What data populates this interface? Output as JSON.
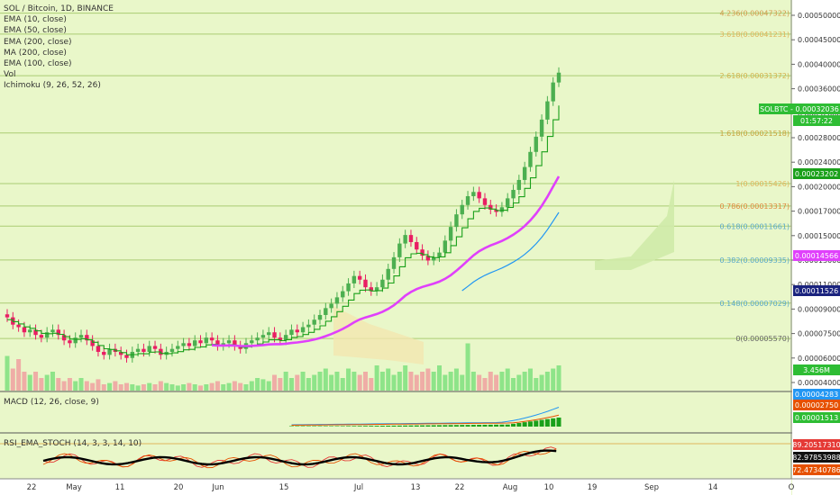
{
  "legend": {
    "symbol": "SOL / Bitcoin, 1D, BINANCE",
    "indicators": [
      "EMA (10, close)",
      "EMA (50, close)",
      "EMA (200, close)",
      "MA (200, close)",
      "EMA (100, close)",
      "Vol",
      "Ichimoku (9, 26, 52, 26)"
    ]
  },
  "macd_title": "MACD (12, 26, close, 9)",
  "rsi_title": "RSI_EMA_STOCH (14, 3, 3, 14, 10)",
  "colors": {
    "background": "#e9f7c9",
    "up": "#4caf50",
    "down": "#e91e63",
    "ema50": "#e040fb",
    "ema100": "#2196f3",
    "fib_line": "#a3c86a"
  },
  "chart_data": [
    {
      "type": "candlestick",
      "title": "SOL / Bitcoin, 1D, BINANCE",
      "x_ticks": [
        "22",
        "May",
        "11",
        "20",
        "Jun",
        "15",
        "Jul",
        "13",
        "22",
        "Aug",
        "10",
        "19",
        "Sep",
        "14",
        "O"
      ],
      "y_ticks": [
        "0.00050000",
        "0.00045000",
        "0.00040000",
        "0.00036000",
        "0.00032000",
        "0.00028000",
        "0.00024000",
        "0.00020000",
        "0.00017000",
        "0.00015000",
        "0.00013000",
        "0.00011000",
        "0.00009000",
        "0.00007500",
        "0.00006000",
        "0.00004000"
      ],
      "fib_levels": [
        {
          "label": "4.236(0.00047322)",
          "value": 0.00047322,
          "color": "#d49a4c"
        },
        {
          "label": "3.618(0.00041231)",
          "value": 0.00041231,
          "color": "#e0b45a"
        },
        {
          "label": "2.618(0.00031372)",
          "value": 0.00031372,
          "color": "#d4b24c"
        },
        {
          "label": "1.618(0.00021518)",
          "value": 0.00021518,
          "color": "#c9a33d"
        },
        {
          "label": "1(0.00015426)",
          "value": 0.00015426,
          "color": "#e0b45a"
        },
        {
          "label": "0.786(0.00013317)",
          "value": 0.00013317,
          "color": "#e08a3d"
        },
        {
          "label": "0.618(0.00011661)",
          "value": 0.00011661,
          "color": "#5aa9c9"
        },
        {
          "label": "0.382(0.00009335)",
          "value": 9.335e-05,
          "color": "#5aa9c9"
        },
        {
          "label": "0.148(0.00007029)",
          "value": 7.029e-05,
          "color": "#5aa9c9"
        },
        {
          "label": "0(0.00005570)",
          "value": 5.57e-05,
          "color": "#666666"
        }
      ],
      "price_tags": [
        {
          "label": "SOLBTC",
          "value": "0.00032036",
          "countdown": "01:57:22",
          "bg": "#2ebd34"
        },
        {
          "value": "0.00023202",
          "bg": "#1aa01a"
        },
        {
          "value": "0.00014566",
          "bg": "#e040fb"
        },
        {
          "value": "0.00011526",
          "bg": "#1a237e"
        },
        {
          "value": "3.456M",
          "bg": "#2ebd34"
        }
      ],
      "close_series": [
        6.4,
        6.1,
        6.0,
        5.8,
        5.9,
        5.7,
        5.6,
        5.8,
        5.9,
        5.7,
        5.5,
        5.4,
        5.6,
        5.7,
        5.5,
        5.3,
        5.1,
        5.0,
        5.2,
        5.1,
        5.0,
        4.9,
        5.1,
        5.2,
        5.1,
        5.3,
        5.2,
        5.0,
        5.1,
        5.2,
        5.3,
        5.4,
        5.3,
        5.5,
        5.4,
        5.6,
        5.5,
        5.3,
        5.4,
        5.5,
        5.3,
        5.2,
        5.4,
        5.5,
        5.6,
        5.7,
        5.8,
        5.6,
        5.5,
        5.7,
        5.9,
        5.8,
        6.0,
        6.1,
        6.3,
        6.5,
        6.8,
        7.0,
        7.3,
        7.6,
        8.0,
        8.4,
        8.2,
        7.8,
        7.6,
        7.8,
        8.2,
        8.8,
        9.5,
        10.4,
        11.0,
        10.5,
        10.0,
        9.6,
        9.3,
        9.5,
        9.8,
        10.6,
        11.6,
        12.6,
        13.4,
        14.2,
        14.6,
        14.0,
        13.4,
        13.0,
        12.8,
        13.2,
        14.0,
        14.8,
        15.8,
        17.2,
        19.0,
        21.0,
        23.5,
        26.5,
        30.0,
        32.0
      ],
      "volume_series": [
        0.55,
        0.35,
        0.5,
        0.3,
        0.25,
        0.3,
        0.2,
        0.25,
        0.3,
        0.2,
        0.15,
        0.2,
        0.15,
        0.2,
        0.15,
        0.12,
        0.18,
        0.1,
        0.12,
        0.15,
        0.1,
        0.12,
        0.1,
        0.08,
        0.1,
        0.12,
        0.1,
        0.15,
        0.12,
        0.1,
        0.08,
        0.1,
        0.12,
        0.1,
        0.08,
        0.1,
        0.12,
        0.15,
        0.1,
        0.12,
        0.15,
        0.12,
        0.1,
        0.15,
        0.2,
        0.18,
        0.15,
        0.25,
        0.2,
        0.3,
        0.2,
        0.25,
        0.3,
        0.2,
        0.25,
        0.3,
        0.35,
        0.25,
        0.3,
        0.2,
        0.35,
        0.3,
        0.25,
        0.3,
        0.2,
        0.4,
        0.3,
        0.35,
        0.25,
        0.3,
        0.4,
        0.3,
        0.25,
        0.3,
        0.35,
        0.3,
        0.4,
        0.25,
        0.3,
        0.35,
        0.25,
        0.75,
        0.3,
        0.25,
        0.2,
        0.3,
        0.25,
        0.3,
        0.35,
        0.2,
        0.25,
        0.3,
        0.35,
        0.2,
        0.25,
        0.3,
        0.35,
        0.4
      ]
    },
    {
      "type": "line",
      "title": "MACD (12, 26, close, 9)",
      "price_tags": [
        {
          "value": "0.00004283",
          "bg": "#2196f3"
        },
        {
          "value": "0.00002750",
          "bg": "#e65100"
        },
        {
          "value": "0.00001513",
          "bg": "#2ebd34"
        }
      ]
    },
    {
      "type": "line",
      "title": "RSI_EMA_STOCH (14, 3, 3, 14, 10)",
      "price_tags": [
        {
          "value": "89.20517310",
          "bg": "#e53935"
        },
        {
          "value": "82.97853988",
          "bg": "#111111"
        },
        {
          "value": "72.47340786",
          "bg": "#e65100"
        }
      ]
    }
  ]
}
